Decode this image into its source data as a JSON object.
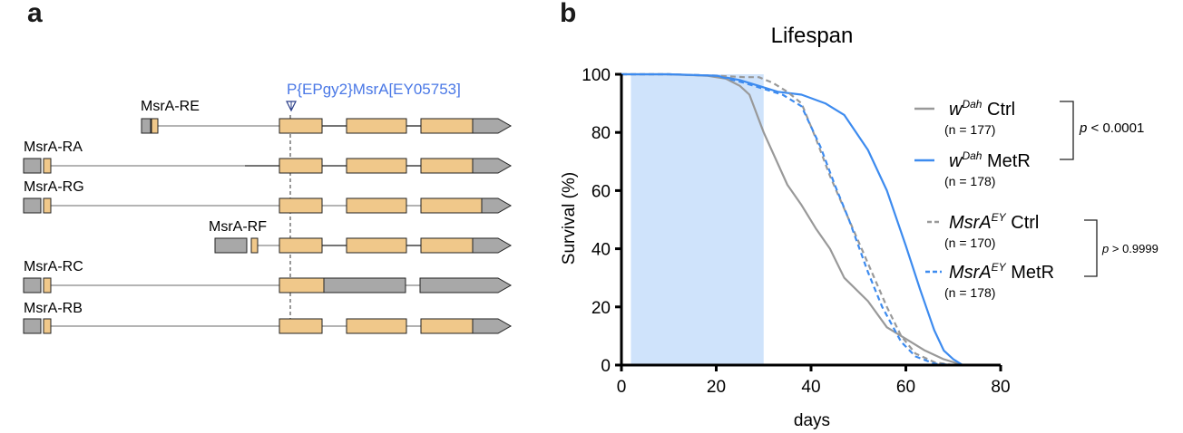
{
  "panels": {
    "a": "a",
    "b": "b"
  },
  "gene_diagram": {
    "insertion_label": "P{EPgy2}MsrA[EY05753]",
    "insertion_color": "#4a78e6",
    "exon_color": "#f0c88a",
    "utr_color": "#a8a8a8",
    "transcripts": [
      {
        "name": "MsrA-RE"
      },
      {
        "name": "MsrA-RA"
      },
      {
        "name": "MsrA-RG"
      },
      {
        "name": "MsrA-RF"
      },
      {
        "name": "MsrA-RC"
      },
      {
        "name": "MsrA-RB"
      }
    ]
  },
  "chart_data": {
    "type": "line",
    "title": "Lifespan",
    "xlabel": "days",
    "ylabel": "Survival (%)",
    "xlim": [
      0,
      80
    ],
    "ylim": [
      0,
      100
    ],
    "xticks": [
      0,
      20,
      40,
      60,
      80
    ],
    "yticks": [
      0,
      20,
      40,
      60,
      80,
      100
    ],
    "shaded_region": {
      "x_start": 2,
      "x_end": 30,
      "color": "#cfe3fb"
    },
    "legend_position": "right",
    "series": [
      {
        "name_main": "w",
        "name_sup": "Dah",
        "name_rest": " Ctrl",
        "n_label": "(n = 177)",
        "color": "#999999",
        "dash": "solid",
        "points": [
          [
            0,
            100
          ],
          [
            10,
            100
          ],
          [
            18,
            99.5
          ],
          [
            22,
            98.5
          ],
          [
            25,
            96
          ],
          [
            27,
            93
          ],
          [
            30,
            80
          ],
          [
            35,
            62
          ],
          [
            38,
            55
          ],
          [
            41,
            47
          ],
          [
            44,
            40
          ],
          [
            47,
            30
          ],
          [
            52,
            22
          ],
          [
            56,
            13
          ],
          [
            60,
            9
          ],
          [
            64,
            5
          ],
          [
            68,
            2
          ],
          [
            72,
            0
          ]
        ]
      },
      {
        "name_main": "w",
        "name_sup": "Dah",
        "name_rest": " MetR",
        "n_label": "(n = 178)",
        "color": "#3d8bef",
        "dash": "solid",
        "points": [
          [
            0,
            100
          ],
          [
            10,
            100
          ],
          [
            20,
            99.5
          ],
          [
            25,
            98
          ],
          [
            29,
            96
          ],
          [
            33,
            94
          ],
          [
            38,
            93
          ],
          [
            43,
            90
          ],
          [
            47,
            86
          ],
          [
            52,
            74
          ],
          [
            56,
            60
          ],
          [
            60,
            41
          ],
          [
            63,
            26
          ],
          [
            66,
            12
          ],
          [
            68,
            5
          ],
          [
            70,
            2
          ],
          [
            72,
            0
          ]
        ]
      },
      {
        "name_main": "MsrA",
        "name_sup": "EY",
        "name_rest": " Ctrl",
        "n_label": "(n = 170)",
        "color": "#999999",
        "dash": "dashed",
        "points": [
          [
            0,
            100
          ],
          [
            10,
            100
          ],
          [
            20,
            99.5
          ],
          [
            26,
            99
          ],
          [
            29,
            99
          ],
          [
            32,
            97
          ],
          [
            35,
            94
          ],
          [
            38,
            90
          ],
          [
            41,
            78
          ],
          [
            44,
            65
          ],
          [
            48,
            50
          ],
          [
            52,
            35
          ],
          [
            56,
            20
          ],
          [
            59,
            10
          ],
          [
            62,
            4
          ],
          [
            66,
            1
          ],
          [
            70,
            0
          ]
        ]
      },
      {
        "name_main": "MsrA",
        "name_sup": "EY",
        "name_rest": " MetR",
        "n_label": "(n = 178)",
        "color": "#3d8bef",
        "dash": "dashed",
        "points": [
          [
            0,
            100
          ],
          [
            10,
            100
          ],
          [
            20,
            99.5
          ],
          [
            26,
            97
          ],
          [
            30,
            95
          ],
          [
            34,
            93
          ],
          [
            38,
            89
          ],
          [
            42,
            75
          ],
          [
            45,
            62
          ],
          [
            48,
            50
          ],
          [
            52,
            32
          ],
          [
            55,
            20
          ],
          [
            59,
            8
          ],
          [
            62,
            3
          ],
          [
            66,
            0.5
          ],
          [
            70,
            0
          ]
        ]
      }
    ],
    "comparisons": [
      {
        "label": "< 0.0001"
      },
      {
        "label": "> 0.9999"
      }
    ]
  }
}
